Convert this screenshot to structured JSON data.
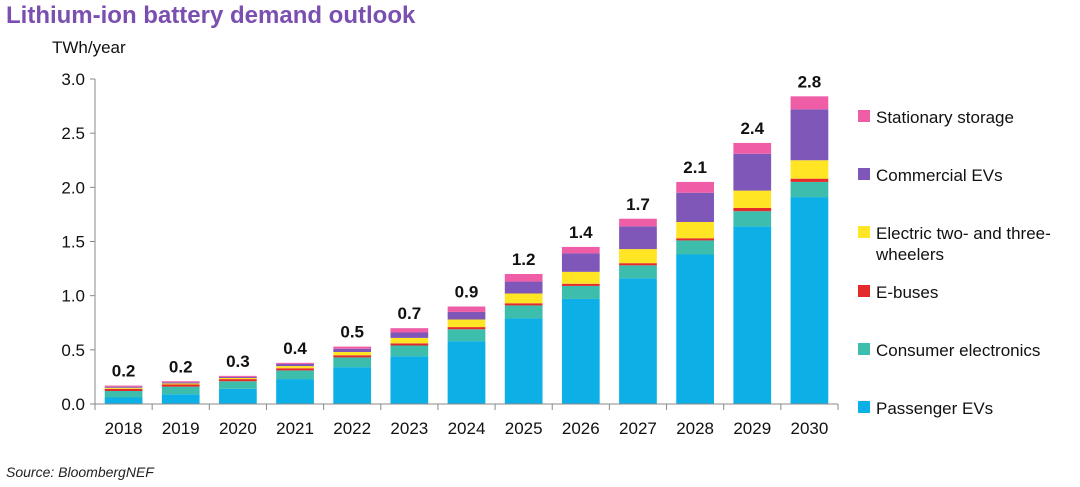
{
  "header": {
    "title": "Lithium-ion battery demand outlook"
  },
  "footer": {
    "source": "Source: BloombergNEF"
  },
  "chart_data": {
    "type": "bar",
    "stacked": true,
    "title": "Lithium-ion battery demand outlook",
    "ylabel": "TWh/year",
    "xlabel": "",
    "ylim": [
      0,
      3.0
    ],
    "yticks": [
      "0.0",
      "0.5",
      "1.0",
      "1.5",
      "2.0",
      "2.5",
      "3.0"
    ],
    "legend_position": "right",
    "categories": [
      "2018",
      "2019",
      "2020",
      "2021",
      "2022",
      "2023",
      "2024",
      "2025",
      "2026",
      "2027",
      "2028",
      "2029",
      "2030"
    ],
    "series": [
      {
        "name": "Passenger EVs",
        "color": "#0cb0e6",
        "values": [
          0.06,
          0.09,
          0.14,
          0.23,
          0.34,
          0.44,
          0.58,
          0.79,
          0.97,
          1.16,
          1.38,
          1.64,
          1.91
        ]
      },
      {
        "name": "Consumer electronics",
        "color": "#3dbdab",
        "values": [
          0.06,
          0.07,
          0.07,
          0.08,
          0.09,
          0.1,
          0.11,
          0.12,
          0.12,
          0.12,
          0.13,
          0.14,
          0.14
        ]
      },
      {
        "name": "E-buses",
        "color": "#e42b2b",
        "values": [
          0.02,
          0.02,
          0.02,
          0.02,
          0.02,
          0.02,
          0.02,
          0.02,
          0.02,
          0.02,
          0.02,
          0.03,
          0.03
        ]
      },
      {
        "name": "Electric two- and three-wheelers",
        "color": "#ffe524",
        "values": [
          0.01,
          0.01,
          0.01,
          0.02,
          0.03,
          0.05,
          0.07,
          0.09,
          0.11,
          0.13,
          0.15,
          0.16,
          0.17
        ]
      },
      {
        "name": "Commercial EVs",
        "color": "#7e57b8",
        "values": [
          0.01,
          0.01,
          0.01,
          0.02,
          0.03,
          0.05,
          0.07,
          0.11,
          0.17,
          0.21,
          0.27,
          0.34,
          0.47
        ]
      },
      {
        "name": "Stationary storage",
        "color": "#ee5da5",
        "values": [
          0.01,
          0.01,
          0.01,
          0.01,
          0.02,
          0.04,
          0.05,
          0.07,
          0.06,
          0.07,
          0.1,
          0.1,
          0.12
        ]
      }
    ],
    "totals": [
      "0.2",
      "0.2",
      "0.3",
      "0.4",
      "0.5",
      "0.7",
      "0.9",
      "1.2",
      "1.4",
      "1.7",
      "2.1",
      "2.4",
      "2.8"
    ],
    "legend_order": [
      "Stationary storage",
      "Commercial EVs",
      "Electric two- and three-wheelers",
      "E-buses",
      "Consumer electronics",
      "Passenger EVs"
    ]
  }
}
